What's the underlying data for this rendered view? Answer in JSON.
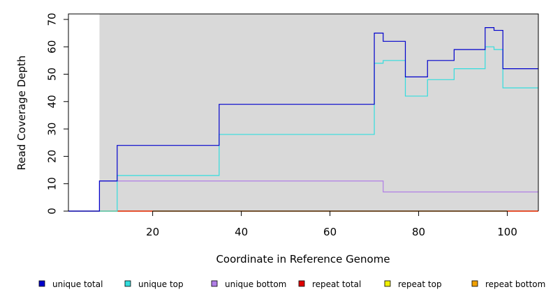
{
  "chart_data": {
    "type": "line",
    "step": true,
    "title": "",
    "xlabel": "Coordinate in Reference Genome",
    "ylabel": "Read Coverage Depth",
    "xlim": [
      1,
      107
    ],
    "ylim": [
      0,
      72
    ],
    "x_ticks": [
      20,
      40,
      60,
      80,
      100
    ],
    "y_ticks": [
      0,
      10,
      20,
      30,
      40,
      50,
      60,
      70
    ],
    "shaded_region": {
      "x_start": 8,
      "x_end": 107,
      "color": "#d9d9d9"
    },
    "legend_position": "bottom",
    "series": [
      {
        "name": "unique total",
        "color": "#0000cc",
        "x": [
          1,
          8,
          12,
          35,
          70,
          72,
          77,
          82,
          88,
          95,
          97,
          99,
          107
        ],
        "y": [
          0,
          11,
          24,
          39,
          65,
          62,
          49,
          55,
          59,
          67,
          66,
          52,
          52
        ]
      },
      {
        "name": "unique top",
        "color": "#33dddd",
        "x": [
          1,
          12,
          35,
          70,
          72,
          77,
          82,
          88,
          95,
          97,
          99,
          107
        ],
        "y": [
          0,
          13,
          28,
          54,
          55,
          42,
          48,
          52,
          60,
          59,
          45,
          45
        ]
      },
      {
        "name": "unique bottom",
        "color": "#b07ee6",
        "x": [
          1,
          8,
          72,
          107
        ],
        "y": [
          0,
          11,
          7,
          7
        ]
      },
      {
        "name": "repeat total",
        "color": "#e00000",
        "x": [
          1,
          107
        ],
        "y": [
          0,
          0
        ]
      },
      {
        "name": "repeat top",
        "color": "#f0f000",
        "x": [
          1,
          107
        ],
        "y": [
          0,
          0
        ]
      },
      {
        "name": "repeat bottom",
        "color": "#f0a000",
        "x": [
          1,
          107
        ],
        "y": [
          0,
          0
        ]
      }
    ]
  }
}
